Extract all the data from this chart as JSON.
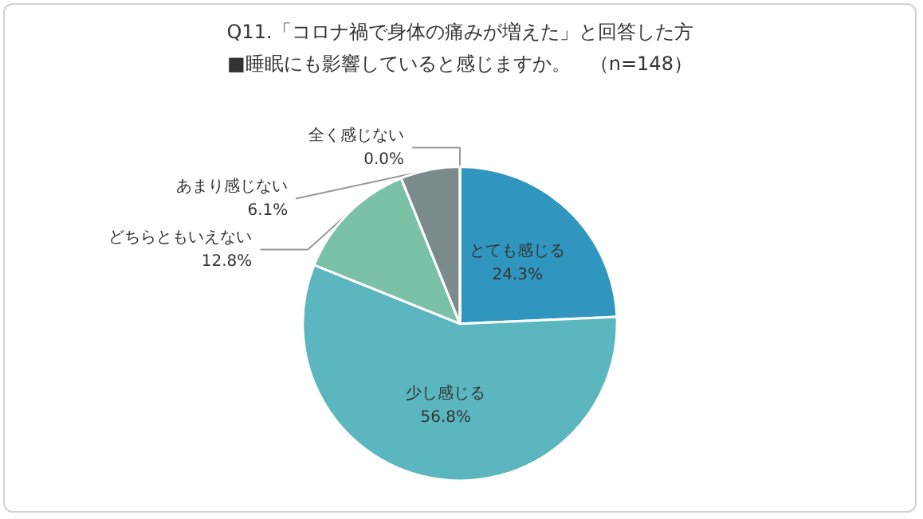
{
  "chart_data": {
    "type": "pie",
    "title": "Q11.「コロナ禍で身体の痛みが増えた」と回答した方",
    "subtitle": "■睡眠にも影響していると感じますか。　（n=148）",
    "categories": [
      "とても感じる",
      "少し感じる",
      "どちらともいえない",
      "あまり感じない",
      "全く感じない"
    ],
    "values": [
      24.3,
      56.8,
      12.8,
      6.1,
      0.0
    ],
    "colors": [
      "#3196bf",
      "#5cb6c0",
      "#7bc1a6",
      "#7b8b8b",
      "#a6a6a6"
    ],
    "value_labels": [
      "24.3%",
      "56.8%",
      "12.8%",
      "6.1%",
      "0.0%"
    ],
    "legend": false
  }
}
